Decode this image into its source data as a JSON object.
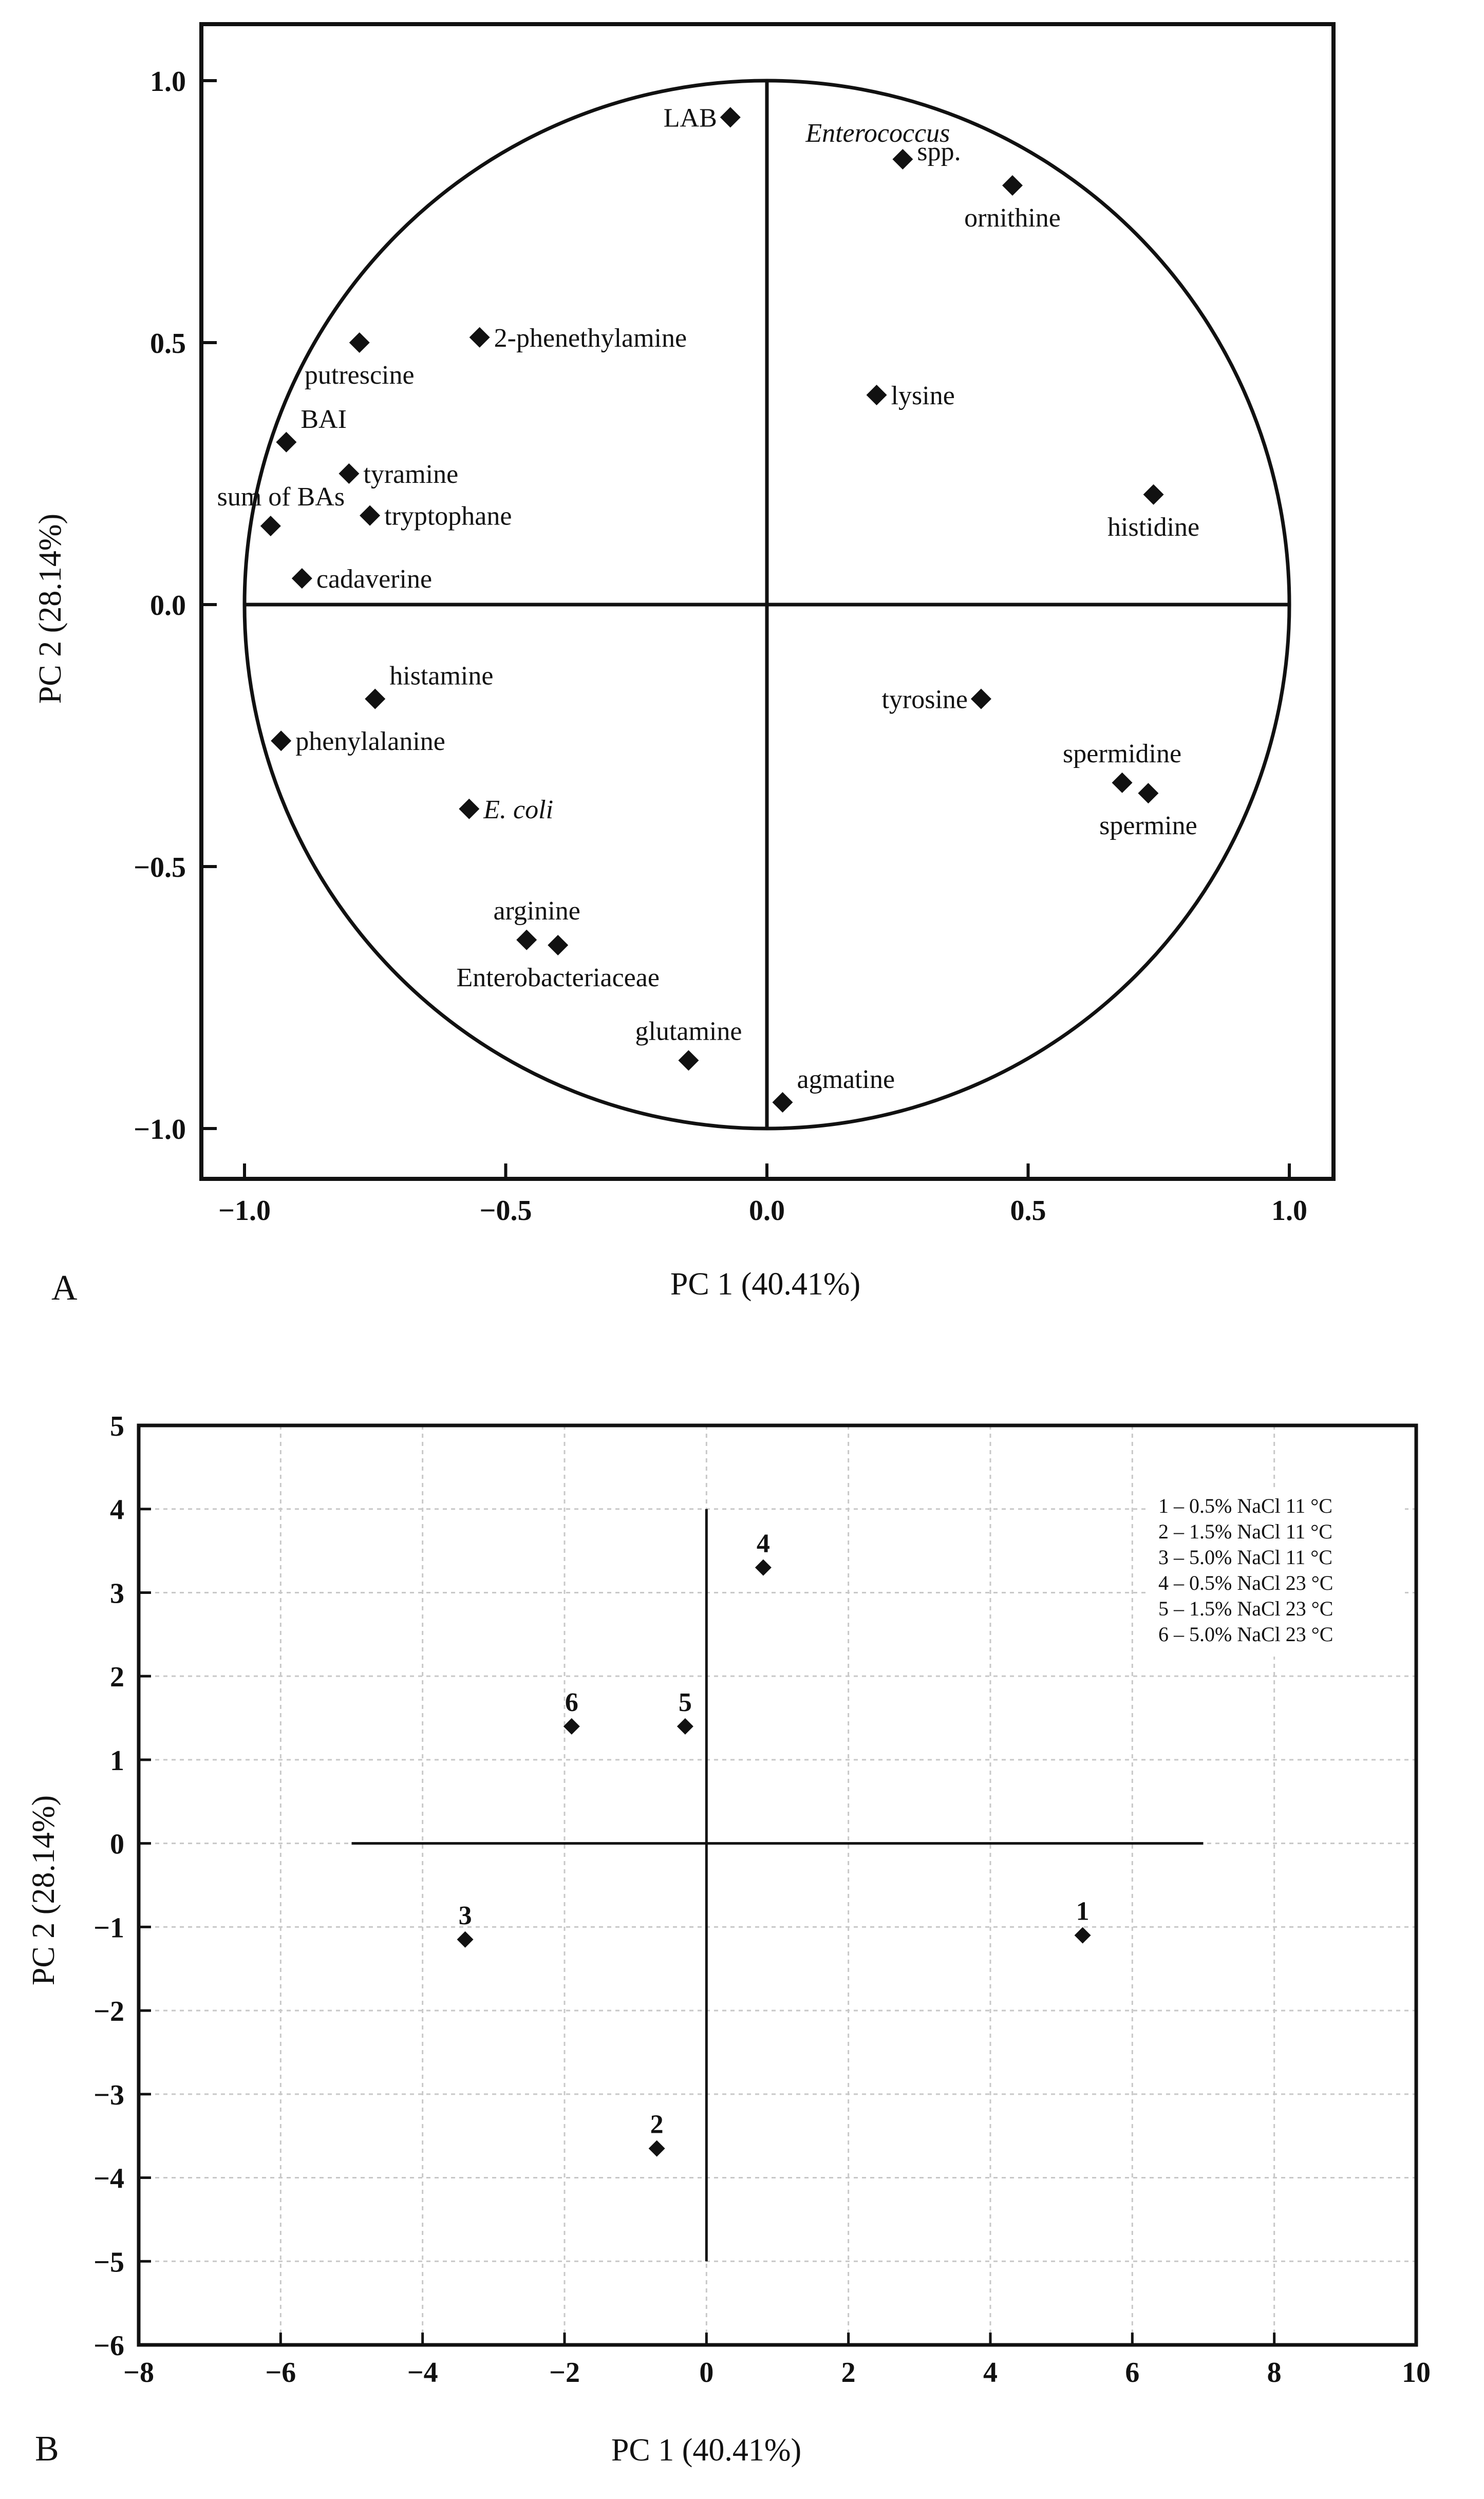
{
  "colors": {
    "ink": "#111111",
    "grid": "#c8c8c8",
    "background": "#ffffff"
  },
  "panels": [
    {
      "letter": "A"
    },
    {
      "letter": "B"
    }
  ],
  "chart_data": [
    {
      "type": "scatter",
      "panel": "A",
      "title": "",
      "xlabel": "PC 1 (40.41%)",
      "ylabel": "PC 2 (28.14%)",
      "xlim": [
        -1.1,
        1.1
      ],
      "ylim": [
        -1.1,
        1.1
      ],
      "xticks": [
        "−1.0",
        "−0.5",
        "0.0",
        "0.5",
        "1.0"
      ],
      "xtick_values": [
        -1.0,
        -0.5,
        0.0,
        0.5,
        1.0
      ],
      "yticks": [
        "1.0",
        "0.5",
        "0.0",
        "−0.5",
        "−1.0"
      ],
      "ytick_values": [
        1.0,
        0.5,
        0.0,
        -0.5,
        -1.0
      ],
      "unit_circle": true,
      "grid": false,
      "points": [
        {
          "label": "LAB",
          "x": -0.07,
          "y": 0.93,
          "anchor": "left"
        },
        {
          "label": "Enterococcus spp.",
          "x": 0.26,
          "y": 0.85,
          "anchor": "special"
        },
        {
          "label": "ornithine",
          "x": 0.47,
          "y": 0.8,
          "anchor": "below"
        },
        {
          "label": "2-phenethylamine",
          "x": -0.55,
          "y": 0.51,
          "anchor": "right"
        },
        {
          "label": "putrescine",
          "x": -0.78,
          "y": 0.5,
          "anchor": "below"
        },
        {
          "label": "lysine",
          "x": 0.21,
          "y": 0.4,
          "anchor": "right"
        },
        {
          "label": "BAI",
          "x": -0.92,
          "y": 0.31,
          "anchor": "above-right"
        },
        {
          "label": "tyramine",
          "x": -0.8,
          "y": 0.25,
          "anchor": "right"
        },
        {
          "label": "histidine",
          "x": 0.74,
          "y": 0.21,
          "anchor": "below"
        },
        {
          "label": "sum of BAs",
          "x": -0.95,
          "y": 0.15,
          "anchor": "above-left"
        },
        {
          "label": "tryptophane",
          "x": -0.76,
          "y": 0.17,
          "anchor": "right"
        },
        {
          "label": "cadaverine",
          "x": -0.89,
          "y": 0.05,
          "anchor": "right"
        },
        {
          "label": "histamine",
          "x": -0.75,
          "y": -0.18,
          "anchor": "above-right"
        },
        {
          "label": "tyrosine",
          "x": 0.41,
          "y": -0.18,
          "anchor": "left"
        },
        {
          "label": "phenylalanine",
          "x": -0.93,
          "y": -0.26,
          "anchor": "right"
        },
        {
          "label": "spermidine",
          "x": 0.68,
          "y": -0.34,
          "anchor": "above"
        },
        {
          "label": "spermine",
          "x": 0.73,
          "y": -0.36,
          "anchor": "below"
        },
        {
          "label": "E. coli",
          "x": -0.57,
          "y": -0.39,
          "anchor": "right"
        },
        {
          "label": "arginine",
          "x": -0.46,
          "y": -0.64,
          "anchor": "above-left"
        },
        {
          "label": "Enterobacteriaceae",
          "x": -0.4,
          "y": -0.65,
          "anchor": "below"
        },
        {
          "label": "glutamine",
          "x": -0.15,
          "y": -0.87,
          "anchor": "above"
        },
        {
          "label": "agmatine",
          "x": 0.03,
          "y": -0.95,
          "anchor": "above-right"
        }
      ],
      "label_parts": {
        "enterococcus_genus": "Enterococcus",
        "enterococcus_spp": "spp."
      }
    },
    {
      "type": "scatter",
      "panel": "B",
      "title": "",
      "xlabel": "PC 1 (40.41%)",
      "ylabel": "PC 2 (28.14%)",
      "xlim": [
        -8,
        10
      ],
      "ylim": [
        -6,
        5
      ],
      "xticks": [
        "−8",
        "−6",
        "−4",
        "−2",
        "0",
        "2",
        "4",
        "6",
        "8",
        "10"
      ],
      "xtick_values": [
        -8,
        -6,
        -4,
        -2,
        0,
        2,
        4,
        6,
        8,
        10
      ],
      "yticks": [
        "5",
        "4",
        "3",
        "2",
        "1",
        "0",
        "−1",
        "−2",
        "−3",
        "−4",
        "−5",
        "−6"
      ],
      "ytick_values": [
        5,
        4,
        3,
        2,
        1,
        0,
        -1,
        -2,
        -3,
        -4,
        -5,
        -6
      ],
      "grid": true,
      "cross_axes": {
        "h_range": [
          -5,
          7
        ],
        "v_range": [
          -5,
          4
        ]
      },
      "points": [
        {
          "label": "1",
          "x": 5.3,
          "y": -1.1
        },
        {
          "label": "2",
          "x": -0.7,
          "y": -3.65
        },
        {
          "label": "3",
          "x": -3.4,
          "y": -1.15
        },
        {
          "label": "4",
          "x": 0.8,
          "y": 3.3
        },
        {
          "label": "5",
          "x": -0.3,
          "y": 1.4
        },
        {
          "label": "6",
          "x": -1.9,
          "y": 1.4
        }
      ],
      "legend_position": "top-right",
      "legend": [
        "1 – 0.5% NaCl 11 °C",
        "2 – 1.5% NaCl 11 °C",
        "3 – 5.0% NaCl 11 °C",
        "4 – 0.5% NaCl 23 °C",
        "5 – 1.5% NaCl 23 °C",
        "6 – 5.0% NaCl 23 °C"
      ]
    }
  ]
}
